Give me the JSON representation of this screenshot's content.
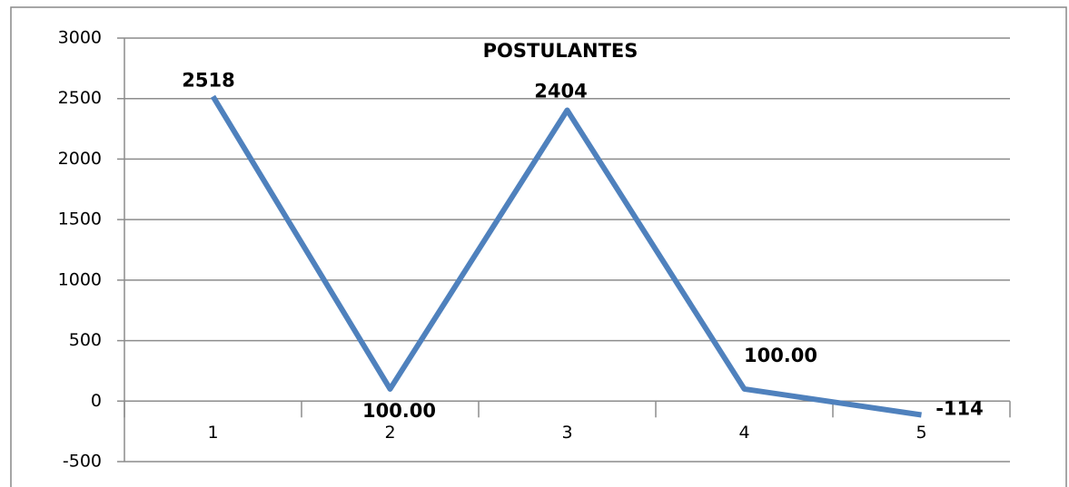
{
  "chart_data": {
    "type": "line",
    "title": "POSTULANTES",
    "categories": [
      "1",
      "2",
      "3",
      "4",
      "5"
    ],
    "values": [
      2518,
      100,
      2404,
      100,
      -114
    ],
    "value_labels": [
      "2518",
      "100.00",
      "2404",
      "100.00",
      "-114"
    ],
    "color": "#4f81bd",
    "ylim": [
      -500,
      3000
    ],
    "yticks": [
      -500,
      0,
      500,
      1000,
      1500,
      2000,
      2500,
      3000
    ],
    "grid": true
  }
}
